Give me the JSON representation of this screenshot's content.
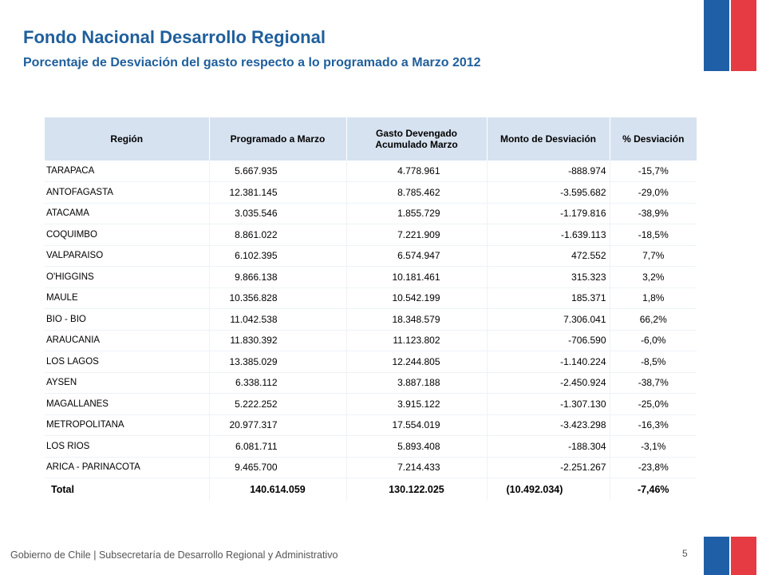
{
  "header": {
    "title": "Fondo Nacional Desarrollo Regional",
    "subtitle": "Porcentaje de Desviación  del gasto respecto a lo programado a Marzo 2012"
  },
  "table": {
    "headers": [
      "Región",
      "Programado a Marzo",
      "Gasto Devengado Acumulado Marzo",
      "Monto de Desviación",
      "% Desviación"
    ],
    "rows": [
      [
        "TARAPACA",
        "5.667.935",
        "4.778.961",
        "-888.974",
        "-15,7%"
      ],
      [
        "ANTOFAGASTA",
        "12.381.145",
        "8.785.462",
        "-3.595.682",
        "-29,0%"
      ],
      [
        "ATACAMA",
        "3.035.546",
        "1.855.729",
        "-1.179.816",
        "-38,9%"
      ],
      [
        "COQUIMBO",
        "8.861.022",
        "7.221.909",
        "-1.639.113",
        "-18,5%"
      ],
      [
        "VALPARAISO",
        "6.102.395",
        "6.574.947",
        "472.552",
        "7,7%"
      ],
      [
        "O'HIGGINS",
        "9.866.138",
        "10.181.461",
        "315.323",
        "3,2%"
      ],
      [
        "MAULE",
        "10.356.828",
        "10.542.199",
        "185.371",
        "1,8%"
      ],
      [
        "BIO - BIO",
        "11.042.538",
        "18.348.579",
        "7.306.041",
        "66,2%"
      ],
      [
        "ARAUCANIA",
        "11.830.392",
        "11.123.802",
        "-706.590",
        "-6,0%"
      ],
      [
        "LOS LAGOS",
        "13.385.029",
        "12.244.805",
        "-1.140.224",
        "-8,5%"
      ],
      [
        "AYSEN",
        "6.338.112",
        "3.887.188",
        "-2.450.924",
        "-38,7%"
      ],
      [
        "MAGALLANES",
        "5.222.252",
        "3.915.122",
        "-1.307.130",
        "-25,0%"
      ],
      [
        "METROPOLITANA",
        "20.977.317",
        "17.554.019",
        "-3.423.298",
        "-16,3%"
      ],
      [
        "LOS RIOS",
        "6.081.711",
        "5.893.408",
        "-188.304",
        "-3,1%"
      ],
      [
        "ARICA - PARINACOTA",
        "9.465.700",
        "7.214.433",
        "-2.251.267",
        "-23,8%"
      ]
    ],
    "total": [
      "Total",
      "140.614.059",
      "130.122.025",
      "(10.492.034)",
      "-7,46%"
    ]
  },
  "footer": {
    "text": "Gobierno de Chile | Subsecretaría de Desarrollo Regional y Administrativo",
    "page_number": "5"
  },
  "colors": {
    "title": "#1f5f9c",
    "header_fill": "#d7e2f0",
    "flag_blue": "#1f5fa8",
    "flag_red": "#e63b42"
  }
}
